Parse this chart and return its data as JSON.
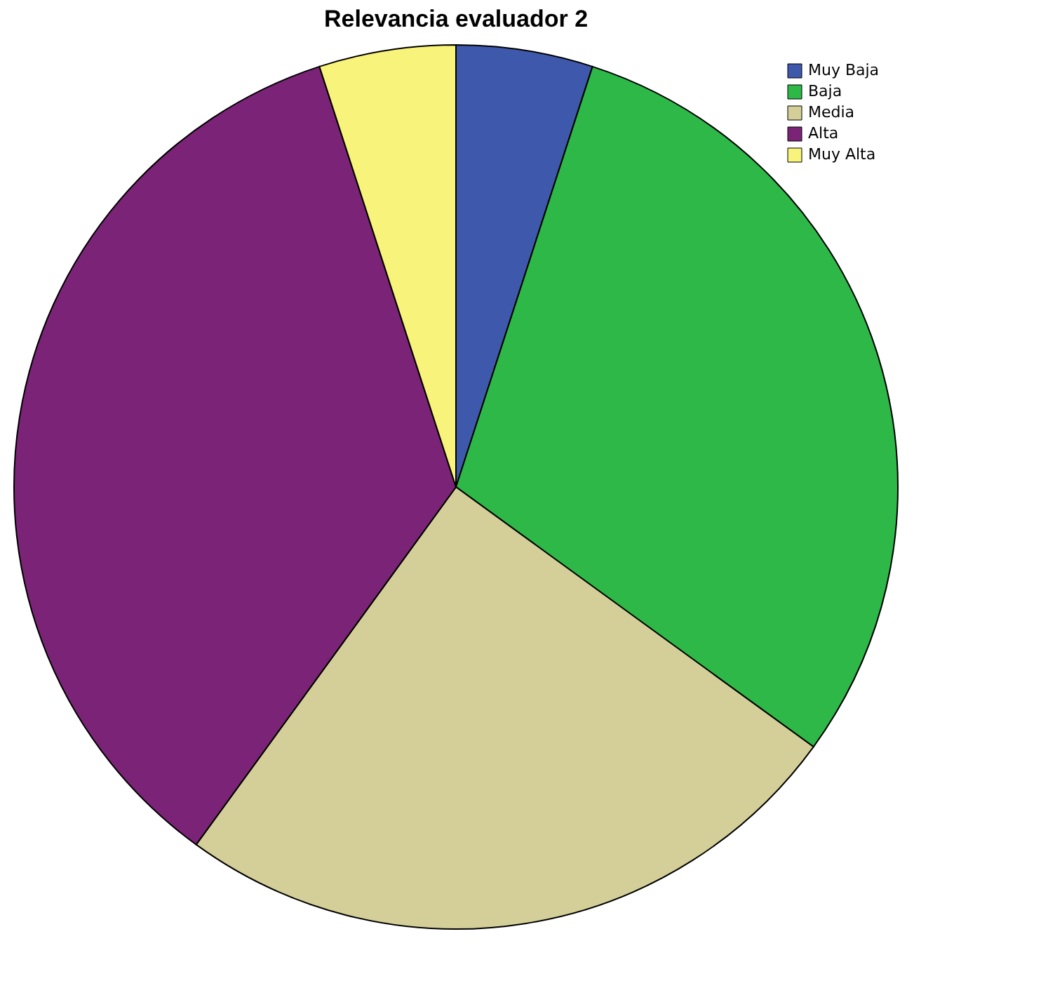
{
  "chart_data": {
    "type": "pie",
    "title": "Relevancia evaluador 2",
    "categories": [
      "Muy Baja",
      "Baja",
      "Media",
      "Alta",
      "Muy Alta"
    ],
    "values": [
      5,
      30,
      25,
      35,
      5
    ],
    "colors": [
      "#3e58ac",
      "#2eb848",
      "#d4cf98",
      "#7b2477",
      "#f8f37a"
    ],
    "legend": "top right"
  }
}
